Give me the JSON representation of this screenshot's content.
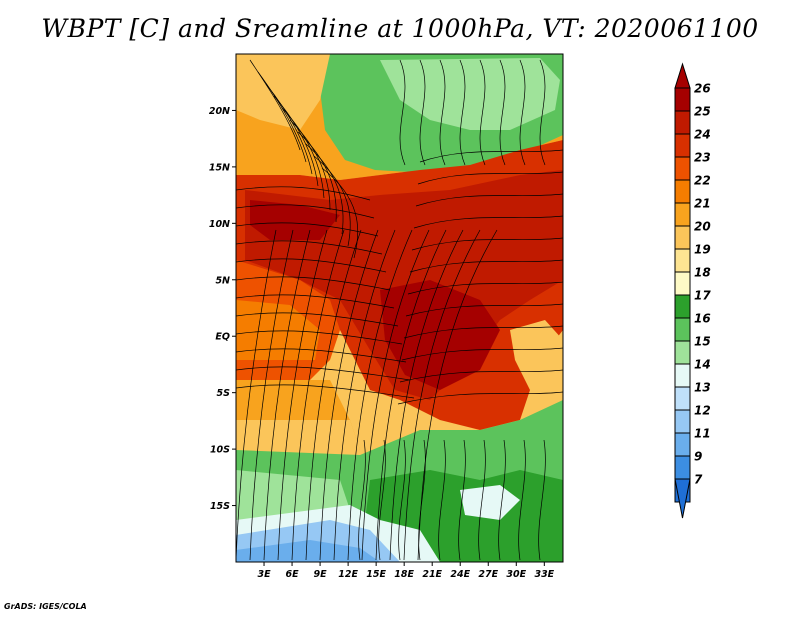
{
  "title": "WBPT [C] and Sreamline at 1000hPa, VT: 2020061100",
  "credit": "GrADS: IGES/COLA",
  "map": {
    "lat_range": [
      -20,
      25
    ],
    "lon_range": [
      0,
      35
    ],
    "lat_ticks": [
      {
        "value": 20,
        "label": "20N"
      },
      {
        "value": 15,
        "label": "15N"
      },
      {
        "value": 10,
        "label": "10N"
      },
      {
        "value": 5,
        "label": "5N"
      },
      {
        "value": 0,
        "label": "EQ"
      },
      {
        "value": -5,
        "label": "5S"
      },
      {
        "value": -10,
        "label": "10S"
      },
      {
        "value": -15,
        "label": "15S"
      }
    ],
    "lon_ticks": [
      {
        "value": 3,
        "label": "3E"
      },
      {
        "value": 6,
        "label": "6E"
      },
      {
        "value": 9,
        "label": "9E"
      },
      {
        "value": 12,
        "label": "12E"
      },
      {
        "value": 15,
        "label": "15E"
      },
      {
        "value": 18,
        "label": "18E"
      },
      {
        "value": 21,
        "label": "21E"
      },
      {
        "value": 24,
        "label": "24E"
      },
      {
        "value": 27,
        "label": "27E"
      },
      {
        "value": 30,
        "label": "30E"
      },
      {
        "value": 33,
        "label": "33E"
      }
    ]
  },
  "colorbar": {
    "levels": [
      {
        "label": "26",
        "color": "#a50000"
      },
      {
        "label": "25",
        "color": "#c01a00"
      },
      {
        "label": "24",
        "color": "#d83000"
      },
      {
        "label": "23",
        "color": "#ee5200"
      },
      {
        "label": "22",
        "color": "#f57d00"
      },
      {
        "label": "21",
        "color": "#f8a31e"
      },
      {
        "label": "20",
        "color": "#fbc55a"
      },
      {
        "label": "19",
        "color": "#fde492"
      },
      {
        "label": "18",
        "color": "#fefac6"
      },
      {
        "label": "17",
        "color": "#2ca02c"
      },
      {
        "label": "16",
        "color": "#5cc35c"
      },
      {
        "label": "15",
        "color": "#9fe39a"
      },
      {
        "label": "14",
        "color": "#e6f9f6"
      },
      {
        "label": "13",
        "color": "#bfe0fa"
      },
      {
        "label": "12",
        "color": "#96c8f4"
      },
      {
        "label": "11",
        "color": "#6aaeec"
      },
      {
        "label": "9",
        "color": "#3c8ee2"
      },
      {
        "label": "7",
        "color": "#1f6fd6"
      }
    ],
    "bottom_extend_color": "#1f6fd6"
  }
}
